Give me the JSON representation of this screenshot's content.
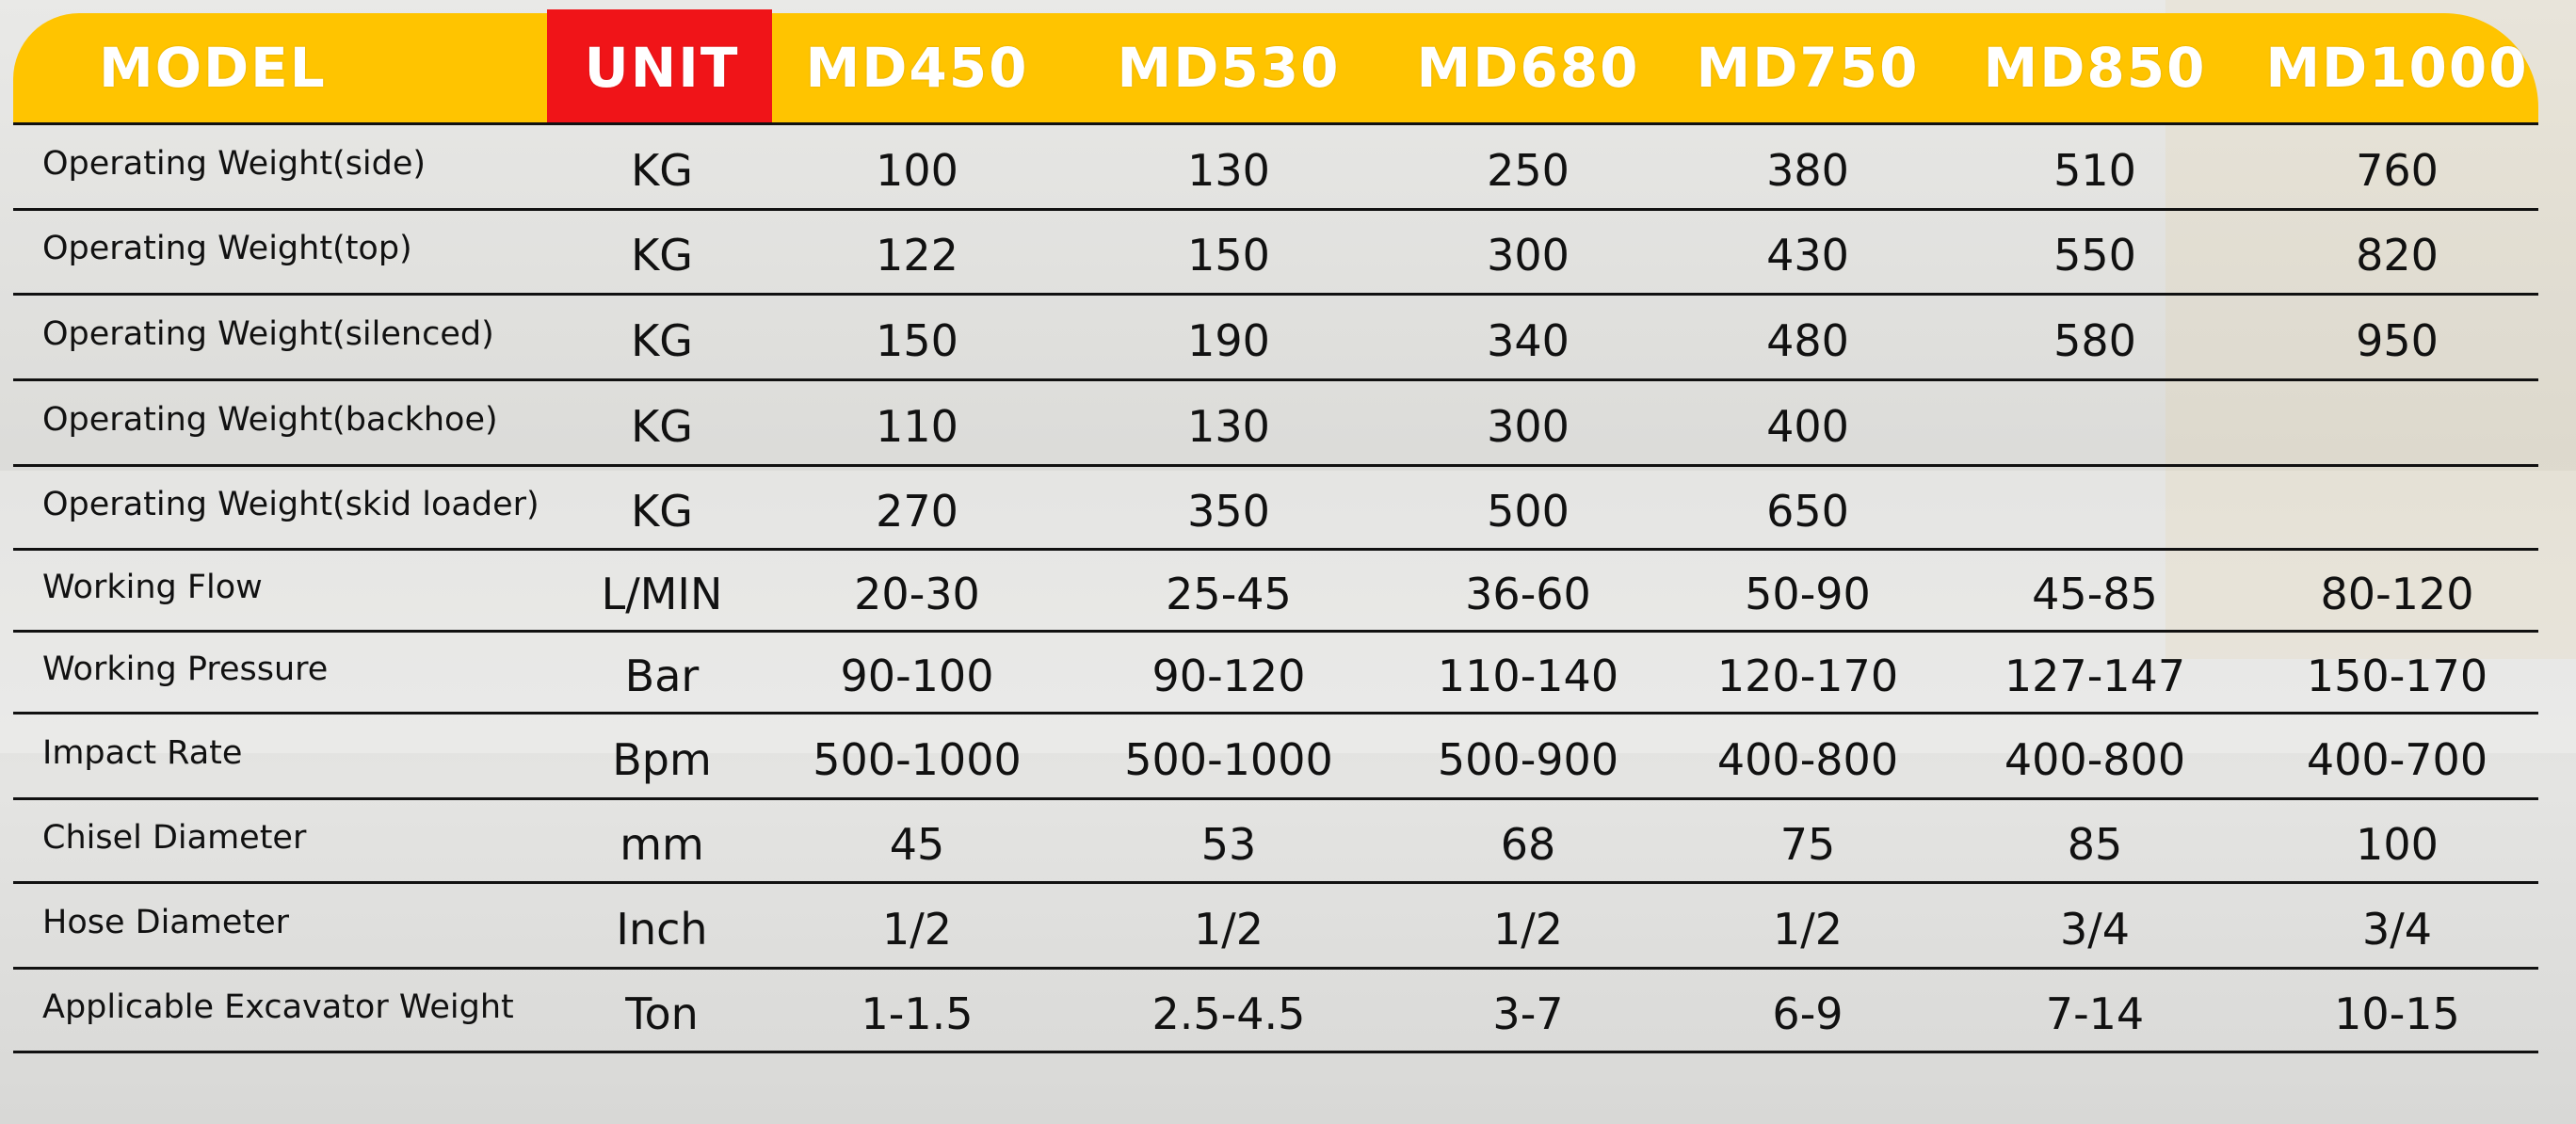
{
  "table": {
    "header": [
      "MODEL",
      "UNIT",
      "MD450",
      "MD530",
      "MD680",
      "MD750",
      "MD850",
      "MD1000"
    ],
    "rows": [
      [
        "Operating Weight(side)",
        "KG",
        "100",
        "130",
        "250",
        "380",
        "510",
        "760"
      ],
      [
        "Operating Weight(top)",
        "KG",
        "122",
        "150",
        "300",
        "430",
        "550",
        "820"
      ],
      [
        "Operating Weight(silenced)",
        "KG",
        "150",
        "190",
        "340",
        "480",
        "580",
        "950"
      ],
      [
        "Operating Weight(backhoe)",
        "KG",
        "110",
        "130",
        "300",
        "400"
      ],
      [
        "Operating Weight(skid loader)",
        "KG",
        "270",
        "350",
        "500",
        "650"
      ],
      [
        "Working Flow",
        "L/MIN",
        "20-30",
        "25-45",
        "36-60",
        "50-90",
        "45-85",
        "80-120"
      ],
      [
        "Working Pressure",
        "Bar",
        "90-100",
        "90-120",
        "110-140",
        "120-170",
        "127-147",
        "150-170"
      ],
      [
        "Impact Rate",
        "Bpm",
        "500-1000",
        "500-1000",
        "500-900",
        "400-800",
        "400-800",
        "400-700"
      ],
      [
        "Chisel Diameter",
        "mm",
        "45",
        "53",
        "68",
        "75",
        "85",
        "100"
      ],
      [
        "Hose Diameter",
        "Inch",
        "1/2",
        "1/2",
        "1/2",
        "1/2",
        "3/4",
        "3/4"
      ],
      [
        "Applicable Excavator Weight",
        "Ton",
        "1-1.5",
        "2.5-4.5",
        "3-7",
        "6-9",
        "7-14",
        "10-15"
      ]
    ]
  }
}
